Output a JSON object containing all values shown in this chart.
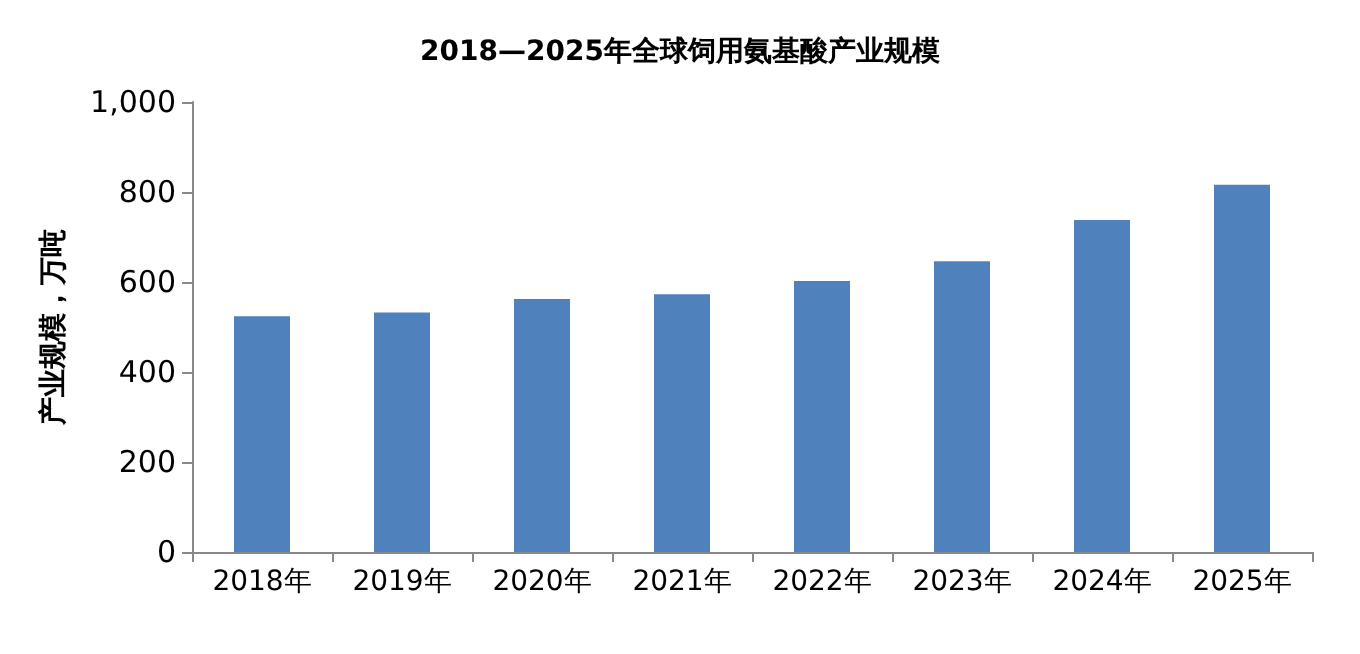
{
  "chart_data": {
    "type": "bar",
    "title": "2018—2025年全球饲用氨基酸产业规模",
    "ylabel": "产业规模，万吨",
    "categories": [
      "2018年",
      "2019年",
      "2020年",
      "2021年",
      "2022年",
      "2023年",
      "2024年",
      "2025年"
    ],
    "values": [
      524,
      532,
      562,
      573,
      602,
      646,
      738,
      816
    ],
    "color": "#4f81bd",
    "ylim": [
      0,
      1000
    ],
    "yticks": [
      0,
      200,
      400,
      600,
      800,
      {
        "value": 1000,
        "label": "1,000"
      }
    ],
    "grid": false
  }
}
